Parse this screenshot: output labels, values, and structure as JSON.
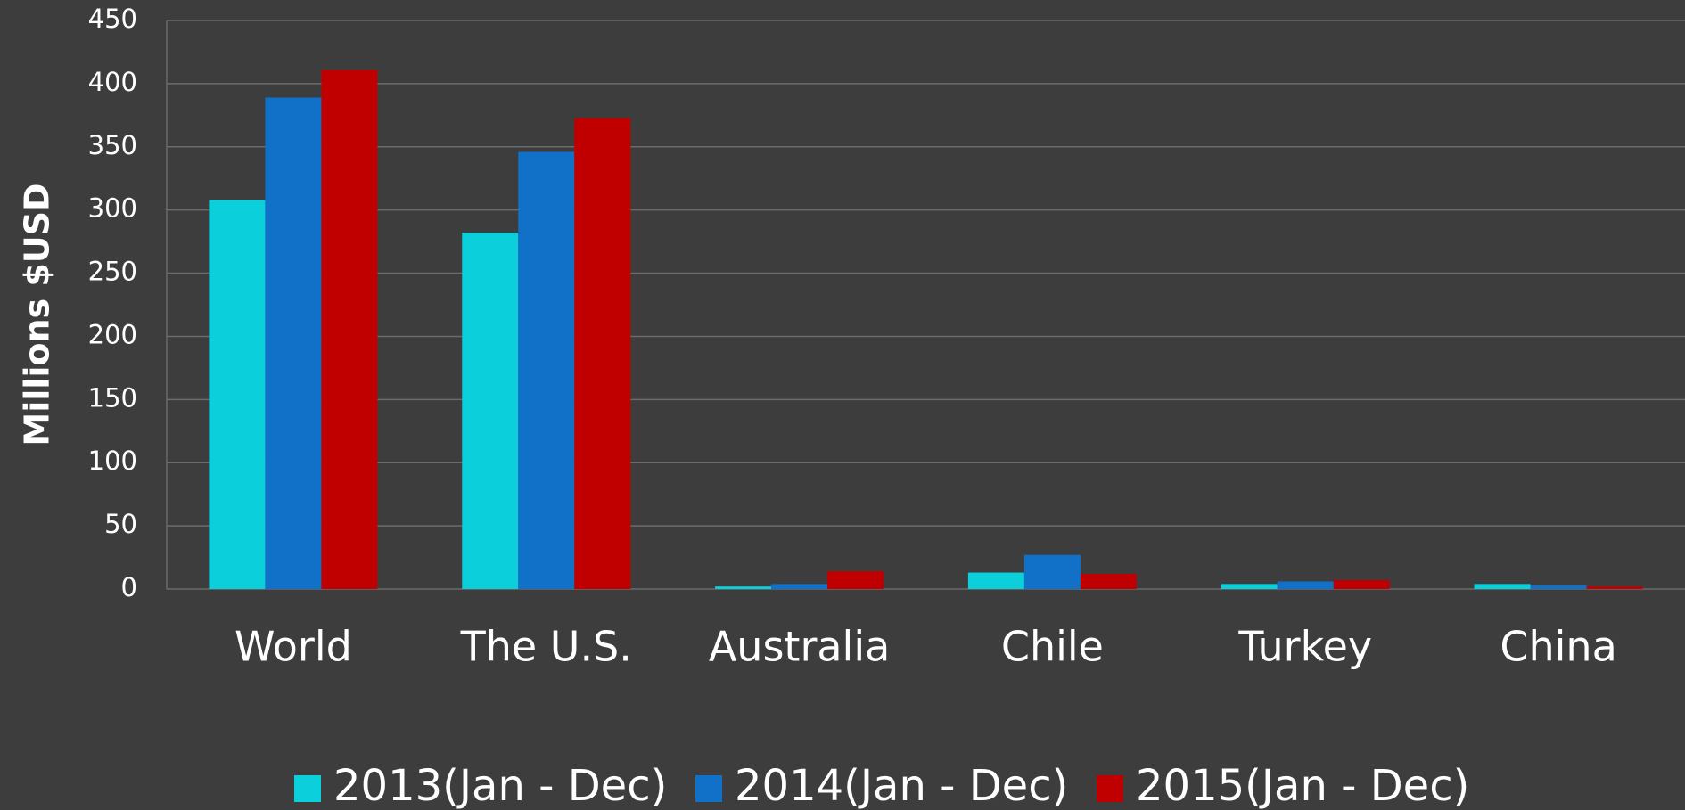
{
  "chart_data": {
    "type": "bar",
    "y_label": "Millions $USD",
    "categories": [
      "World",
      "The U.S.",
      "Australia",
      "Chile",
      "Turkey",
      "China"
    ],
    "series": [
      {
        "name": "2013(Jan - Dec)",
        "color": "#0ccfdc",
        "values": [
          308,
          282,
          2,
          13,
          4,
          4
        ]
      },
      {
        "name": "2014(Jan - Dec)",
        "color": "#1170c8",
        "values": [
          389,
          346,
          4,
          27,
          6,
          3
        ]
      },
      {
        "name": "2015(Jan - Dec)",
        "color": "#c00000",
        "values": [
          411,
          373,
          14,
          12,
          7,
          2
        ]
      }
    ],
    "ylim": [
      0,
      450
    ],
    "yticks": [
      0,
      50,
      100,
      150,
      200,
      250,
      300,
      350,
      400,
      450
    ],
    "grid": true,
    "legend": "bottom"
  }
}
